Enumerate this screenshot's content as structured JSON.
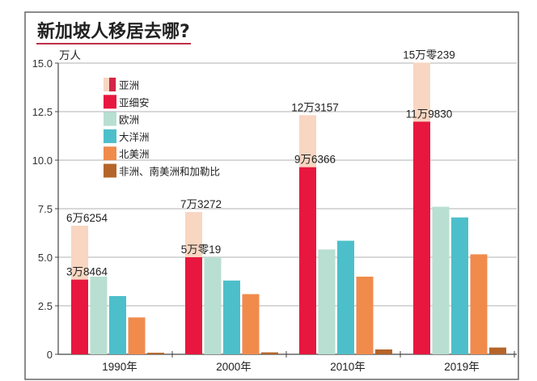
{
  "chart_data": {
    "type": "bar",
    "title": "新加坡人移居去哪?",
    "ylabel": "万人",
    "xlabel": "",
    "ylim": [
      0,
      15
    ],
    "yticks": [
      "0",
      "2.5",
      "5.0",
      "7.5",
      "10.0",
      "12.5",
      "15.0"
    ],
    "ytick_values": [
      0,
      2.5,
      5,
      7.5,
      10,
      12.5,
      15
    ],
    "grid": true,
    "legend_position": "top-left",
    "categories": [
      "1990年",
      "2000年",
      "2010年",
      "2019年"
    ],
    "series": [
      {
        "name": "亚洲",
        "color": "#f8d6c2",
        "values": [
          6.6254,
          7.3272,
          12.3157,
          15.0239
        ],
        "labels": [
          "6万6254",
          "7万3272",
          "12万3157",
          "15万零239"
        ]
      },
      {
        "name": "亚细安",
        "color": "#e8173f",
        "values": [
          3.8464,
          5.0019,
          9.6366,
          11.983
        ],
        "labels": [
          "3万8464",
          "5万零19",
          "9万6366",
          "11万9830"
        ]
      },
      {
        "name": "欧洲",
        "color": "#b8dfd1",
        "values": [
          4.0,
          5.0,
          5.4,
          7.6
        ]
      },
      {
        "name": "大洋洲",
        "color": "#4dbfca",
        "values": [
          3.0,
          3.8,
          5.85,
          7.05
        ]
      },
      {
        "name": "北美洲",
        "color": "#f08b4c",
        "values": [
          1.9,
          3.1,
          4.0,
          5.15
        ]
      },
      {
        "name": "非洲、南美洲和加勒比",
        "color": "#b5652a",
        "values": [
          0.08,
          0.1,
          0.25,
          0.35
        ]
      }
    ]
  }
}
